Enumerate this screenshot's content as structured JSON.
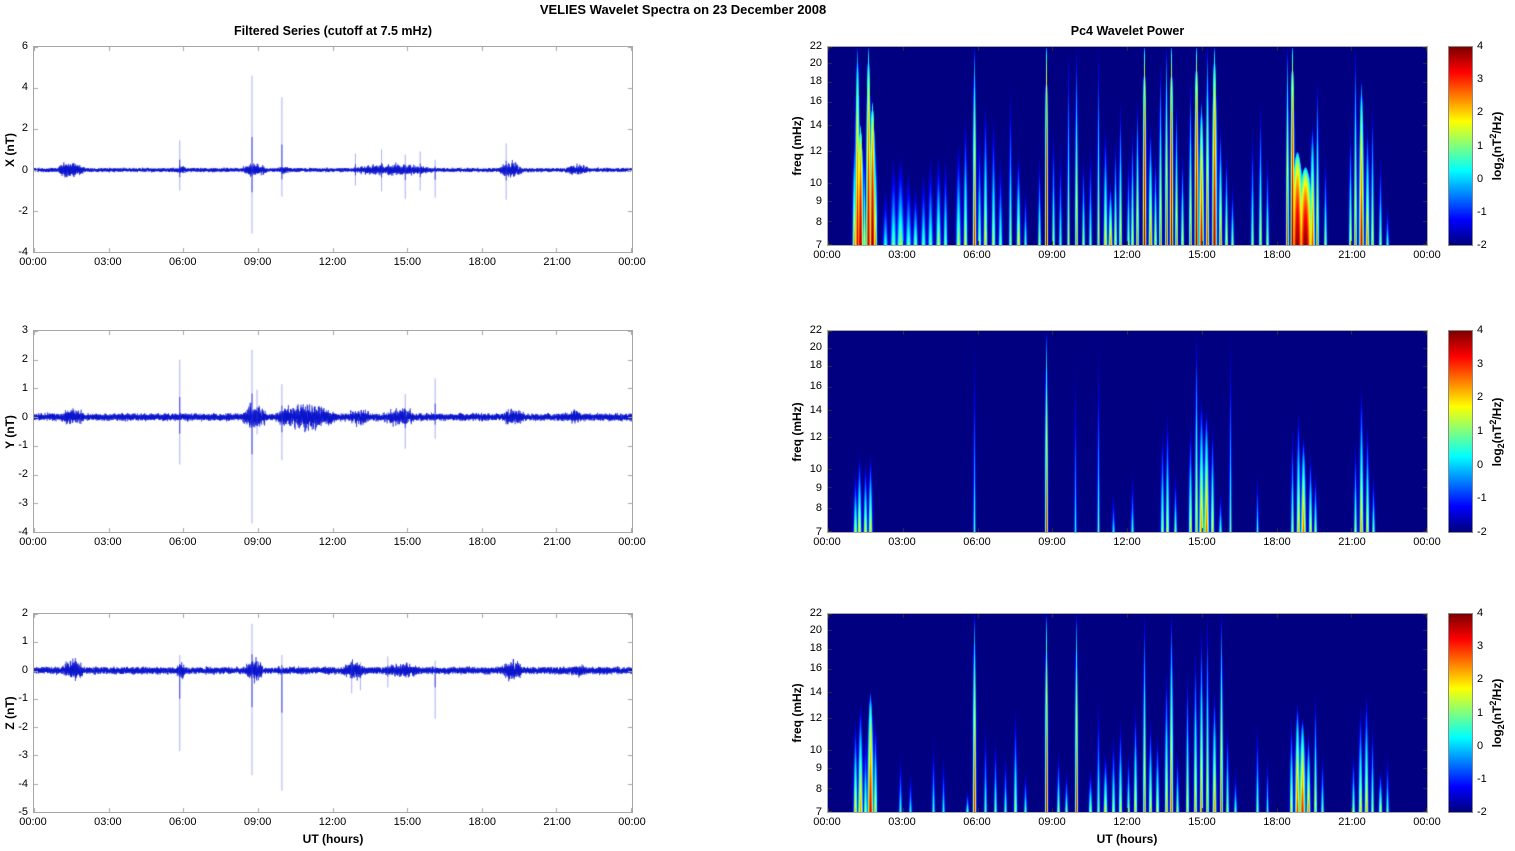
{
  "figure_title": "VELIES Wavelet Spectra on 23 December  2008",
  "left_column_title": "Filtered Series (cutoff at 7.5 mHz)",
  "right_column_title": "Pc4 Wavelet Power",
  "x_axis_label": "UT (hours)",
  "time_ticks": [
    "00:00",
    "03:00",
    "06:00",
    "09:00",
    "12:00",
    "15:00",
    "18:00",
    "21:00",
    "00:00"
  ],
  "colorbar": {
    "ticks": [
      4,
      3,
      2,
      1,
      0,
      -1,
      -2
    ],
    "range": [
      -2,
      4
    ],
    "label_parts": {
      "p1": "log",
      "sub": "2",
      "p2": "(nT",
      "sup": "2",
      "p3": "/Hz)"
    },
    "colormap": "jet",
    "top_color": "#800000",
    "bottom_color": "#000090"
  },
  "line_color": "#0a14cc",
  "chart_data": [
    {
      "type": "line",
      "name": "X filtered series",
      "ylabel": "X (nT)",
      "ylim": [
        -4,
        6
      ],
      "yticks": [
        6,
        4,
        2,
        0,
        -2,
        -4
      ],
      "x_hours": [
        0,
        24
      ],
      "noise_base": 0.055,
      "noise_bursts": [
        [
          0.9,
          2.1,
          0.28
        ],
        [
          5.7,
          6.15,
          0.14
        ],
        [
          8.3,
          9.4,
          0.22
        ],
        [
          9.7,
          10.4,
          0.12
        ],
        [
          12.4,
          16.4,
          0.18
        ],
        [
          18.6,
          19.7,
          0.25
        ],
        [
          21.2,
          22.4,
          0.17
        ]
      ],
      "spikes": [
        [
          5.85,
          1.45,
          -1.0
        ],
        [
          8.75,
          4.6,
          -3.1
        ],
        [
          9.95,
          3.55,
          -1.3
        ],
        [
          12.9,
          0.8,
          -0.75
        ],
        [
          13.95,
          1.0,
          -1.05
        ],
        [
          14.9,
          0.75,
          -1.4
        ],
        [
          15.5,
          0.9,
          -1.0
        ],
        [
          16.1,
          0.5,
          -1.35
        ],
        [
          18.95,
          1.3,
          -1.45
        ]
      ]
    },
    {
      "type": "line",
      "name": "Y filtered series",
      "ylabel": "Y (nT)",
      "ylim": [
        -4,
        3
      ],
      "yticks": [
        3,
        2,
        1,
        0,
        -1,
        -2,
        -3,
        -4
      ],
      "x_hours": [
        0,
        24
      ],
      "noise_base": 0.07,
      "noise_bursts": [
        [
          1.0,
          2.1,
          0.18
        ],
        [
          8.3,
          9.4,
          0.28
        ],
        [
          9.5,
          12.3,
          0.3
        ],
        [
          12.5,
          13.6,
          0.2
        ],
        [
          13.8,
          15.5,
          0.2
        ],
        [
          18.7,
          19.8,
          0.2
        ],
        [
          21.3,
          22.1,
          0.16
        ]
      ],
      "spikes": [
        [
          5.85,
          2.0,
          -1.65
        ],
        [
          8.75,
          2.35,
          -3.7
        ],
        [
          8.95,
          0.95,
          -0.6
        ],
        [
          9.95,
          1.15,
          -1.5
        ],
        [
          14.9,
          0.8,
          -1.1
        ],
        [
          16.1,
          1.35,
          -0.75
        ]
      ]
    },
    {
      "type": "line",
      "name": "Z filtered series",
      "ylabel": "Z (nT)",
      "ylim": [
        -5,
        2
      ],
      "yticks": [
        2,
        1,
        0,
        -1,
        -2,
        -3,
        -4,
        -5
      ],
      "x_hours": [
        0,
        24
      ],
      "noise_base": 0.07,
      "noise_bursts": [
        [
          1.0,
          2.1,
          0.25
        ],
        [
          5.7,
          6.1,
          0.2
        ],
        [
          8.4,
          9.3,
          0.25
        ],
        [
          12.3,
          13.4,
          0.22
        ],
        [
          13.9,
          15.7,
          0.18
        ],
        [
          18.7,
          19.7,
          0.22
        ],
        [
          21.4,
          22.3,
          0.15
        ]
      ],
      "spikes": [
        [
          5.85,
          0.55,
          -2.85
        ],
        [
          8.75,
          1.65,
          -3.7
        ],
        [
          9.95,
          0.55,
          -4.25
        ],
        [
          12.75,
          0.3,
          -0.8
        ],
        [
          13.1,
          0.3,
          -0.7
        ],
        [
          14.2,
          0.5,
          -0.6
        ],
        [
          16.1,
          0.35,
          -1.7
        ]
      ]
    },
    {
      "type": "heatmap",
      "name": "Pc4 wavelet power of X",
      "ylabel": "freq (mHz)",
      "yscale": "log",
      "ylim": [
        7,
        22
      ],
      "yticks": [
        22,
        20,
        18,
        16,
        14,
        12,
        10,
        9,
        8,
        7
      ],
      "clim": [
        -2,
        4
      ],
      "x_hours": [
        0,
        24
      ],
      "events": [
        [
          1.05,
          13,
          2.5,
          0.08
        ],
        [
          1.15,
          22,
          3.5,
          0.1
        ],
        [
          1.3,
          14,
          4,
          0.12
        ],
        [
          1.45,
          12,
          2,
          0.06
        ],
        [
          1.6,
          22,
          3.8,
          0.1
        ],
        [
          1.75,
          16,
          4,
          0.12
        ],
        [
          1.9,
          13,
          2.5,
          0.07
        ],
        [
          2.3,
          10,
          0.6,
          0.1
        ],
        [
          2.6,
          12,
          1,
          0.12
        ],
        [
          2.9,
          12,
          1.3,
          0.15
        ],
        [
          3.2,
          11,
          0.9,
          0.12
        ],
        [
          3.5,
          10,
          1.1,
          0.1
        ],
        [
          3.8,
          11,
          0.9,
          0.1
        ],
        [
          4.1,
          12,
          1,
          0.1
        ],
        [
          4.4,
          12,
          1.5,
          0.1
        ],
        [
          4.7,
          12,
          1.2,
          0.08
        ],
        [
          5.2,
          13,
          1.5,
          0.1
        ],
        [
          5.5,
          15,
          1.8,
          0.08
        ],
        [
          5.85,
          22,
          3.2,
          0.07
        ],
        [
          6.05,
          14,
          1.5,
          0.07
        ],
        [
          6.3,
          16,
          2,
          0.08
        ],
        [
          6.6,
          15,
          1.6,
          0.08
        ],
        [
          6.9,
          12,
          1.1,
          0.08
        ],
        [
          7.3,
          18,
          1.5,
          0.06
        ],
        [
          7.6,
          12,
          2,
          0.08
        ],
        [
          7.9,
          10,
          1,
          0.06
        ],
        [
          8.45,
          12,
          1.5,
          0.06
        ],
        [
          8.75,
          22,
          4,
          0.06
        ],
        [
          9.0,
          14,
          1.5,
          0.06
        ],
        [
          9.3,
          13,
          1,
          0.06
        ],
        [
          9.6,
          22,
          1.8,
          0.05
        ],
        [
          9.95,
          22,
          2.5,
          0.06
        ],
        [
          10.2,
          12,
          1.5,
          0.06
        ],
        [
          10.5,
          13,
          1.2,
          0.06
        ],
        [
          10.8,
          22,
          2,
          0.05
        ],
        [
          11.1,
          14,
          2,
          0.08
        ],
        [
          11.3,
          10,
          2.5,
          0.08
        ],
        [
          11.5,
          13,
          2,
          0.06
        ],
        [
          11.7,
          16,
          2.2,
          0.06
        ],
        [
          12.0,
          12,
          1.5,
          0.06
        ],
        [
          12.2,
          14,
          2,
          0.06
        ],
        [
          12.4,
          16,
          2.5,
          0.06
        ],
        [
          12.65,
          22,
          4,
          0.07
        ],
        [
          12.9,
          14,
          2.5,
          0.08
        ],
        [
          13.1,
          12,
          2,
          0.06
        ],
        [
          13.3,
          20,
          2.5,
          0.06
        ],
        [
          13.55,
          22,
          3,
          0.06
        ],
        [
          13.75,
          22,
          4,
          0.07
        ],
        [
          13.95,
          16,
          2.5,
          0.06
        ],
        [
          14.2,
          12,
          2,
          0.06
        ],
        [
          14.5,
          18,
          2.5,
          0.06
        ],
        [
          14.75,
          22,
          4,
          0.08
        ],
        [
          14.95,
          16,
          3.5,
          0.1
        ],
        [
          15.2,
          22,
          3,
          0.07
        ],
        [
          15.45,
          22,
          3.8,
          0.1
        ],
        [
          15.7,
          14,
          2.5,
          0.07
        ],
        [
          15.95,
          12,
          2,
          0.06
        ],
        [
          16.2,
          10,
          1.5,
          0.06
        ],
        [
          17.0,
          14,
          1.5,
          0.06
        ],
        [
          17.3,
          16,
          2,
          0.06
        ],
        [
          17.6,
          12,
          1.5,
          0.06
        ],
        [
          18.4,
          22,
          3,
          0.06
        ],
        [
          18.6,
          22,
          4,
          0.08
        ],
        [
          18.8,
          12,
          4,
          0.25
        ],
        [
          19.1,
          11,
          4,
          0.3
        ],
        [
          19.4,
          14,
          3,
          0.1
        ],
        [
          19.6,
          18,
          2.5,
          0.06
        ],
        [
          19.9,
          12,
          1.5,
          0.06
        ],
        [
          20.9,
          14,
          2,
          0.06
        ],
        [
          21.1,
          22,
          2.5,
          0.06
        ],
        [
          21.35,
          18,
          3.5,
          0.1
        ],
        [
          21.6,
          14,
          2.5,
          0.08
        ],
        [
          21.8,
          16,
          2,
          0.06
        ],
        [
          22.1,
          12,
          1.5,
          0.06
        ],
        [
          22.4,
          9,
          0.8,
          0.06
        ]
      ]
    },
    {
      "type": "heatmap",
      "name": "Pc4 wavelet power of Y",
      "ylabel": "freq (mHz)",
      "yscale": "log",
      "ylim": [
        7,
        22
      ],
      "yticks": [
        22,
        20,
        18,
        16,
        14,
        12,
        10,
        9,
        8,
        7
      ],
      "clim": [
        -2,
        4
      ],
      "x_hours": [
        0,
        24
      ],
      "events": [
        [
          1.1,
          10,
          1.5,
          0.08
        ],
        [
          1.25,
          11,
          2,
          0.08
        ],
        [
          1.5,
          10.5,
          1.8,
          0.08
        ],
        [
          1.7,
          11,
          2,
          0.08
        ],
        [
          5.85,
          22,
          0.8,
          0.05
        ],
        [
          8.75,
          22,
          3.2,
          0.06
        ],
        [
          9.9,
          20,
          0.5,
          0.05
        ],
        [
          10.8,
          21,
          1,
          0.05
        ],
        [
          11.4,
          9,
          0.5,
          0.06
        ],
        [
          12.2,
          10,
          0.8,
          0.06
        ],
        [
          13.4,
          13,
          1.5,
          0.07
        ],
        [
          13.6,
          14,
          1.8,
          0.07
        ],
        [
          13.9,
          10,
          1.2,
          0.06
        ],
        [
          14.5,
          13,
          2,
          0.07
        ],
        [
          14.75,
          22,
          2.2,
          0.06
        ],
        [
          14.95,
          15,
          2.5,
          0.1
        ],
        [
          15.15,
          14,
          2.8,
          0.1
        ],
        [
          15.4,
          13,
          2,
          0.07
        ],
        [
          15.7,
          9,
          1,
          0.06
        ],
        [
          16.1,
          22,
          1.2,
          0.05
        ],
        [
          17.2,
          10,
          0.8,
          0.05
        ],
        [
          18.6,
          13,
          1.5,
          0.06
        ],
        [
          18.85,
          14,
          2.2,
          0.08
        ],
        [
          19.05,
          12,
          2.8,
          0.1
        ],
        [
          19.3,
          11,
          2,
          0.07
        ],
        [
          19.5,
          10,
          1.5,
          0.06
        ],
        [
          21.1,
          12,
          1.5,
          0.06
        ],
        [
          21.35,
          16,
          2.3,
          0.08
        ],
        [
          21.6,
          13,
          2,
          0.07
        ],
        [
          21.85,
          10,
          1.2,
          0.06
        ]
      ]
    },
    {
      "type": "heatmap",
      "name": "Pc4 wavelet power of Z",
      "ylabel": "freq (mHz)",
      "yscale": "log",
      "ylim": [
        7,
        22
      ],
      "yticks": [
        22,
        20,
        18,
        16,
        14,
        12,
        10,
        9,
        8,
        7
      ],
      "clim": [
        -2,
        4
      ],
      "x_hours": [
        0,
        24
      ],
      "events": [
        [
          1.1,
          12,
          2,
          0.08
        ],
        [
          1.3,
          13,
          2.5,
          0.1
        ],
        [
          1.5,
          11,
          1.5,
          0.07
        ],
        [
          1.7,
          14,
          3.5,
          0.12
        ],
        [
          1.9,
          12,
          2,
          0.07
        ],
        [
          2.9,
          10,
          0.8,
          0.06
        ],
        [
          3.3,
          9,
          0.6,
          0.06
        ],
        [
          4.2,
          11,
          0.8,
          0.06
        ],
        [
          4.6,
          10,
          0.6,
          0.06
        ],
        [
          5.55,
          8,
          1,
          0.06
        ],
        [
          5.85,
          22,
          3.2,
          0.07
        ],
        [
          6.3,
          12,
          1,
          0.06
        ],
        [
          6.7,
          11,
          1.2,
          0.06
        ],
        [
          7.1,
          10,
          1,
          0.06
        ],
        [
          7.5,
          13,
          1.5,
          0.07
        ],
        [
          7.9,
          9,
          1,
          0.06
        ],
        [
          8.75,
          22,
          3.5,
          0.06
        ],
        [
          9.2,
          10,
          1.5,
          0.06
        ],
        [
          9.55,
          9,
          1.2,
          0.06
        ],
        [
          9.95,
          22,
          3.2,
          0.06
        ],
        [
          10.5,
          9,
          1.5,
          0.07
        ],
        [
          10.8,
          14,
          1.2,
          0.06
        ],
        [
          11.1,
          10,
          1.8,
          0.08
        ],
        [
          11.4,
          11,
          1.5,
          0.07
        ],
        [
          11.7,
          12,
          1.8,
          0.07
        ],
        [
          12.0,
          10,
          1.5,
          0.06
        ],
        [
          12.3,
          13,
          2,
          0.07
        ],
        [
          12.65,
          22,
          2.5,
          0.06
        ],
        [
          12.9,
          12,
          2,
          0.07
        ],
        [
          13.2,
          11,
          1.8,
          0.07
        ],
        [
          13.55,
          16,
          2.2,
          0.07
        ],
        [
          13.75,
          22,
          2.8,
          0.07
        ],
        [
          14.0,
          10,
          1.5,
          0.06
        ],
        [
          14.4,
          16,
          2,
          0.06
        ],
        [
          14.7,
          18,
          2.2,
          0.07
        ],
        [
          14.95,
          20,
          2.5,
          0.07
        ],
        [
          15.2,
          22,
          2.2,
          0.06
        ],
        [
          15.45,
          14,
          2.5,
          0.08
        ],
        [
          15.75,
          22,
          2.8,
          0.06
        ],
        [
          16.0,
          12,
          1.5,
          0.06
        ],
        [
          16.3,
          9,
          1,
          0.06
        ],
        [
          17.2,
          12,
          1.2,
          0.06
        ],
        [
          17.6,
          10,
          0.8,
          0.05
        ],
        [
          18.55,
          12,
          2,
          0.07
        ],
        [
          18.8,
          13,
          3,
          0.1
        ],
        [
          19.0,
          12,
          3.2,
          0.12
        ],
        [
          19.25,
          11,
          2.5,
          0.08
        ],
        [
          19.5,
          14,
          2,
          0.06
        ],
        [
          19.8,
          10,
          1.2,
          0.06
        ],
        [
          21.05,
          10,
          1.5,
          0.06
        ],
        [
          21.3,
          13,
          2,
          0.08
        ],
        [
          21.55,
          14,
          2.2,
          0.08
        ],
        [
          21.8,
          12,
          1.5,
          0.06
        ],
        [
          22.1,
          9,
          1.8,
          0.07
        ],
        [
          22.4,
          10,
          1,
          0.06
        ]
      ]
    }
  ]
}
